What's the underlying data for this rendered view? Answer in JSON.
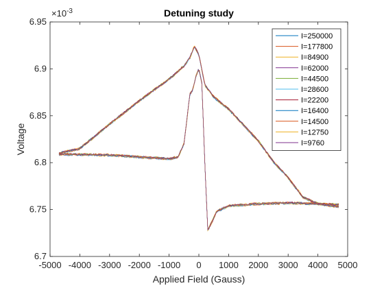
{
  "chart_data": {
    "type": "line",
    "title": "Detuning study",
    "xlabel": "Applied Field (Gauss)",
    "ylabel": "Voltage",
    "y_exponent_label": "×10",
    "y_exponent_power": "-3",
    "xlim": [
      -5000,
      5000
    ],
    "ylim": [
      6.7,
      6.95
    ],
    "y_multiplier": 0.001,
    "xticks": [
      -5000,
      -4000,
      -3000,
      -2000,
      -1000,
      0,
      1000,
      2000,
      3000,
      4000,
      5000
    ],
    "xtick_labels": [
      "-5000",
      "-4000",
      "-3000",
      "-2000",
      "-1000",
      "0",
      "1000",
      "2000",
      "3000",
      "4000",
      "5000"
    ],
    "yticks": [
      6.7,
      6.75,
      6.8,
      6.85,
      6.9,
      6.95
    ],
    "ytick_labels": [
      "6.7",
      "6.75",
      "6.8",
      "6.85",
      "6.9",
      "6.95"
    ],
    "grid": false,
    "legend_position": "top-right",
    "sweep_up": {
      "x": [
        -4700,
        -4000,
        -3000,
        -2000,
        -1000,
        -500,
        -300,
        -150,
        0,
        200,
        500,
        1000,
        2000,
        2500,
        3000,
        3500,
        4000,
        4700
      ],
      "y": [
        6.81,
        6.815,
        6.841,
        6.866,
        6.889,
        6.903,
        6.912,
        6.924,
        6.915,
        6.883,
        6.87,
        6.857,
        6.823,
        6.801,
        6.784,
        6.763,
        6.756,
        6.753
      ]
    },
    "sweep_down": {
      "x": [
        -4700,
        -3000,
        -2000,
        -1000,
        -700,
        -500,
        -300,
        -200,
        -100,
        0,
        100,
        200,
        300,
        400,
        600,
        1000,
        2000,
        3000,
        4000,
        4700
      ],
      "y": [
        6.809,
        6.808,
        6.806,
        6.804,
        6.806,
        6.82,
        6.873,
        6.878,
        6.892,
        6.9,
        6.885,
        6.8,
        6.728,
        6.734,
        6.748,
        6.754,
        6.756,
        6.757,
        6.756,
        6.755
      ]
    },
    "series": [
      {
        "name": "I=250000",
        "color": "#0072BD",
        "offset": 0.0003
      },
      {
        "name": "I=177800",
        "color": "#D95319",
        "offset": -0.0004
      },
      {
        "name": "I=84900",
        "color": "#EDB120",
        "offset": 0.0006
      },
      {
        "name": "I=62000",
        "color": "#7E2F8E",
        "offset": -0.0002
      },
      {
        "name": "I=44500",
        "color": "#77AC30",
        "offset": 0.0004
      },
      {
        "name": "I=28600",
        "color": "#4DBEEE",
        "offset": -0.0006
      },
      {
        "name": "I=22200",
        "color": "#A2142F",
        "offset": 0.0001
      },
      {
        "name": "I=16400",
        "color": "#0072BD",
        "offset": -0.0003
      },
      {
        "name": "I=14500",
        "color": "#D95319",
        "offset": 0.0005
      },
      {
        "name": "I=12750",
        "color": "#EDB120",
        "offset": -0.0005
      },
      {
        "name": "I=9760",
        "color": "#7E2F8E",
        "offset": 0.0002
      }
    ]
  }
}
